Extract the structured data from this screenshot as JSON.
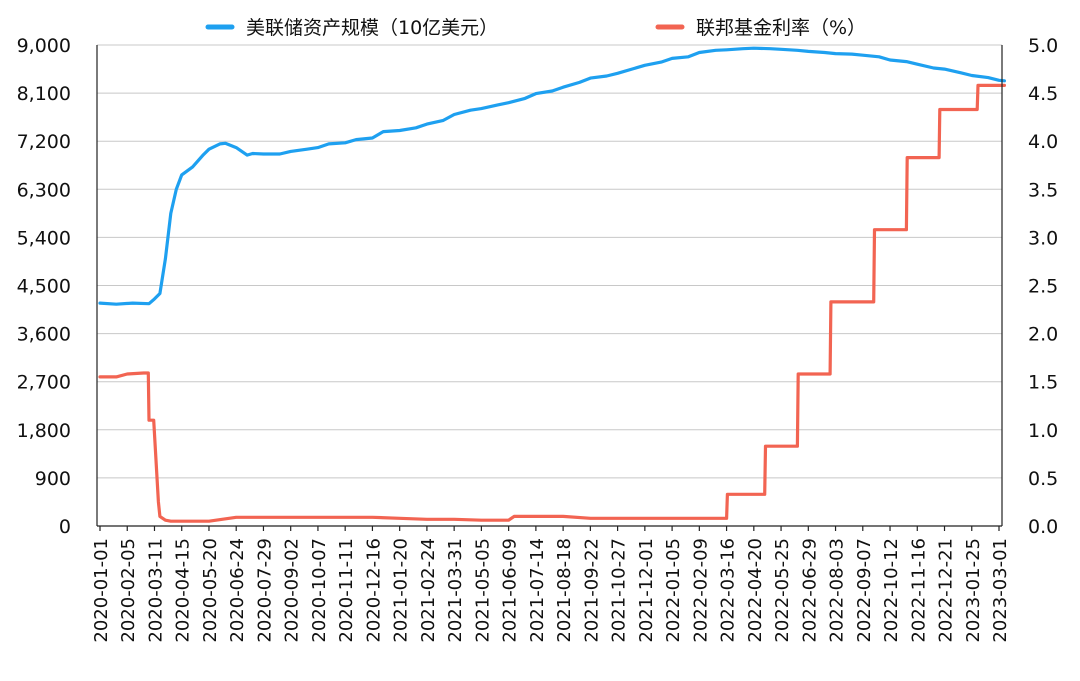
{
  "chart_data": {
    "type": "line",
    "legend": [
      {
        "name": "美联储资产规模（10亿美元）",
        "color": "#1ea0f0"
      },
      {
        "name": "联邦基金利率（%）",
        "color": "#f26452"
      }
    ],
    "legend_placement": "top",
    "grid": true,
    "left_axis": {
      "ylim": [
        0,
        9000
      ],
      "ticks": [
        "0",
        "900",
        "1,800",
        "2,700",
        "3,600",
        "4,500",
        "5,400",
        "6,300",
        "7,200",
        "8,100",
        "9,000"
      ]
    },
    "right_axis": {
      "ylim": [
        0,
        5
      ],
      "ticks": [
        "0.0",
        "0.5",
        "1.0",
        "1.5",
        "2.0",
        "2.5",
        "3.0",
        "3.5",
        "4.0",
        "4.5",
        "5.0"
      ]
    },
    "x_tick_labels": [
      "2020-01-01",
      "2020-02-05",
      "2020-03-11",
      "2020-04-15",
      "2020-05-20",
      "2020-06-24",
      "2020-07-29",
      "2020-09-02",
      "2020-10-07",
      "2020-11-11",
      "2020-12-16",
      "2021-01-20",
      "2021-02-24",
      "2021-03-31",
      "2021-05-05",
      "2021-06-09",
      "2021-07-14",
      "2021-08-18",
      "2021-09-22",
      "2021-10-27",
      "2021-12-01",
      "2022-01-05",
      "2022-02-09",
      "2022-03-16",
      "2022-04-20",
      "2022-05-25",
      "2022-06-29",
      "2022-08-03",
      "2022-09-07",
      "2022-10-12",
      "2022-11-16",
      "2022-12-21",
      "2023-01-25",
      "2023-03-01"
    ],
    "series": [
      {
        "name": "美联储资产规模（10亿美元）",
        "axis": "left",
        "x": [
          "2020-01-01",
          "2020-01-22",
          "2020-02-12",
          "2020-03-04",
          "2020-03-11",
          "2020-03-18",
          "2020-03-25",
          "2020-04-01",
          "2020-04-08",
          "2020-04-15",
          "2020-04-29",
          "2020-05-13",
          "2020-05-20",
          "2020-06-03",
          "2020-06-10",
          "2020-06-24",
          "2020-07-08",
          "2020-07-15",
          "2020-07-29",
          "2020-08-19",
          "2020-09-02",
          "2020-09-23",
          "2020-10-07",
          "2020-10-21",
          "2020-11-11",
          "2020-11-25",
          "2020-12-16",
          "2020-12-30",
          "2021-01-20",
          "2021-02-10",
          "2021-02-24",
          "2021-03-17",
          "2021-03-31",
          "2021-04-21",
          "2021-05-05",
          "2021-05-26",
          "2021-06-09",
          "2021-06-30",
          "2021-07-14",
          "2021-08-04",
          "2021-08-18",
          "2021-09-08",
          "2021-09-22",
          "2021-10-13",
          "2021-10-27",
          "2021-11-17",
          "2021-12-01",
          "2021-12-22",
          "2022-01-05",
          "2022-01-26",
          "2022-02-09",
          "2022-03-02",
          "2022-03-16",
          "2022-04-06",
          "2022-04-20",
          "2022-05-11",
          "2022-05-25",
          "2022-06-15",
          "2022-06-29",
          "2022-07-20",
          "2022-08-03",
          "2022-08-24",
          "2022-09-07",
          "2022-09-28",
          "2022-10-12",
          "2022-11-02",
          "2022-11-16",
          "2022-12-07",
          "2022-12-21",
          "2023-01-11",
          "2023-01-25",
          "2023-02-15",
          "2023-03-01",
          "2023-03-08"
        ],
        "values": [
          4170,
          4150,
          4170,
          4160,
          4250,
          4350,
          5000,
          5850,
          6300,
          6570,
          6720,
          6950,
          7050,
          7150,
          7160,
          7080,
          6940,
          6970,
          6960,
          6960,
          7010,
          7050,
          7080,
          7150,
          7170,
          7230,
          7260,
          7380,
          7400,
          7450,
          7520,
          7590,
          7700,
          7780,
          7810,
          7880,
          7920,
          8000,
          8090,
          8140,
          8210,
          8300,
          8380,
          8420,
          8470,
          8560,
          8620,
          8680,
          8750,
          8780,
          8860,
          8900,
          8910,
          8930,
          8940,
          8930,
          8920,
          8900,
          8880,
          8860,
          8840,
          8830,
          8810,
          8780,
          8720,
          8690,
          8640,
          8570,
          8550,
          8480,
          8430,
          8390,
          8340,
          8330
        ]
      },
      {
        "name": "联邦基金利率（%）",
        "axis": "right",
        "x": [
          "2020-01-01",
          "2020-01-22",
          "2020-02-05",
          "2020-02-26",
          "2020-03-03",
          "2020-03-04",
          "2020-03-10",
          "2020-03-16",
          "2020-03-18",
          "2020-03-25",
          "2020-04-01",
          "2020-04-15",
          "2020-05-20",
          "2020-06-24",
          "2020-07-29",
          "2020-09-02",
          "2020-10-07",
          "2020-11-11",
          "2020-12-16",
          "2021-01-20",
          "2021-02-24",
          "2021-03-31",
          "2021-05-05",
          "2021-06-09",
          "2021-06-16",
          "2021-06-23",
          "2021-07-14",
          "2021-08-18",
          "2021-09-22",
          "2021-10-27",
          "2021-12-01",
          "2022-01-05",
          "2022-02-09",
          "2022-03-16",
          "2022-03-17",
          "2022-05-04",
          "2022-05-05",
          "2022-06-15",
          "2022-06-16",
          "2022-07-27",
          "2022-07-28",
          "2022-09-21",
          "2022-09-22",
          "2022-11-02",
          "2022-11-03",
          "2022-12-14",
          "2022-12-15",
          "2023-02-01",
          "2023-02-02",
          "2023-03-08"
        ],
        "values": [
          1.55,
          1.55,
          1.58,
          1.59,
          1.59,
          1.1,
          1.1,
          0.25,
          0.1,
          0.06,
          0.05,
          0.05,
          0.05,
          0.09,
          0.09,
          0.09,
          0.09,
          0.09,
          0.09,
          0.08,
          0.07,
          0.07,
          0.06,
          0.06,
          0.1,
          0.1,
          0.1,
          0.1,
          0.08,
          0.08,
          0.08,
          0.08,
          0.08,
          0.08,
          0.33,
          0.33,
          0.83,
          0.83,
          1.58,
          1.58,
          2.33,
          2.33,
          3.08,
          3.08,
          3.83,
          3.83,
          4.33,
          4.33,
          4.58,
          4.58
        ]
      }
    ]
  }
}
